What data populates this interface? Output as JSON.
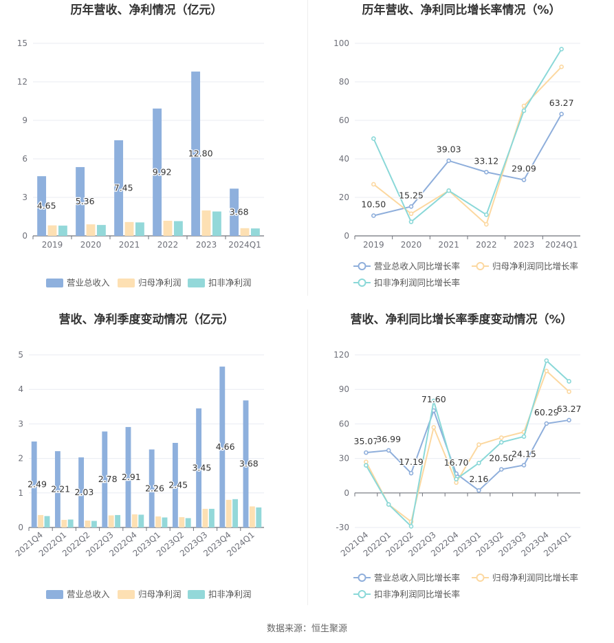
{
  "source_label": "数据来源：恒生聚源",
  "colors": {
    "revenue": "#8eb0dd",
    "net_profit": "#fde0b3",
    "deducted_profit": "#93d8d9",
    "grid": "#e8ebf2",
    "axis": "#6e7079",
    "text": "#333333"
  },
  "chart_data": [
    {
      "type": "bar",
      "title": "历年营收、净利情况（亿元）",
      "categories": [
        "2019",
        "2020",
        "2021",
        "2022",
        "2023",
        "2024Q1"
      ],
      "ylim": [
        0,
        15
      ],
      "yticks": [
        0,
        3,
        6,
        9,
        12,
        15
      ],
      "series": [
        {
          "name": "营业总收入",
          "values": [
            4.65,
            5.36,
            7.45,
            9.92,
            12.8,
            3.68
          ],
          "labels": [
            "4.65",
            "5.36",
            "7.45",
            "9.92",
            "12.80",
            "3.68"
          ]
        },
        {
          "name": "归母净利润",
          "values": [
            0.82,
            0.9,
            1.08,
            1.18,
            1.98,
            0.6
          ]
        },
        {
          "name": "扣非净利润",
          "values": [
            0.8,
            0.85,
            1.05,
            1.15,
            1.9,
            0.58
          ]
        }
      ],
      "legend": "bottom",
      "grid": true
    },
    {
      "type": "line",
      "title": "历年营收、净利同比增长率情况（%）",
      "categories": [
        "2019",
        "2020",
        "2021",
        "2022",
        "2023",
        "2024Q1"
      ],
      "ylim": [
        0,
        100
      ],
      "yticks": [
        0,
        20,
        40,
        60,
        80,
        100
      ],
      "series": [
        {
          "name": "营业总收入同比增长率",
          "values": [
            10.5,
            15.25,
            39.03,
            33.12,
            29.09,
            63.27
          ],
          "labels": [
            "10.50",
            "15.25",
            "39.03",
            "33.12",
            "29.09",
            "63.27"
          ]
        },
        {
          "name": "归母净利润同比增长率",
          "values": [
            26.8,
            11.5,
            23.5,
            6.0,
            67.5,
            87.8
          ]
        },
        {
          "name": "扣非净利润同比增长率",
          "values": [
            50.5,
            7.3,
            23.5,
            11.0,
            65.0,
            97.0
          ]
        }
      ],
      "legend": "bottom",
      "grid": true
    },
    {
      "type": "bar",
      "title": "营收、净利季度变动情况（亿元）",
      "categories": [
        "2021Q4",
        "2022Q1",
        "2022Q2",
        "2022Q3",
        "2022Q4",
        "2023Q1",
        "2023Q2",
        "2023Q3",
        "2023Q4",
        "2024Q1"
      ],
      "ylim": [
        0,
        5
      ],
      "yticks": [
        0,
        1,
        2,
        3,
        4,
        5
      ],
      "series": [
        {
          "name": "营业总收入",
          "values": [
            2.49,
            2.21,
            2.03,
            2.78,
            2.91,
            2.26,
            2.45,
            3.45,
            4.66,
            3.68
          ],
          "labels": [
            "2.49",
            "2.21",
            "2.03",
            "2.78",
            "2.91",
            "2.26",
            "2.45",
            "3.45",
            "4.66",
            "3.68"
          ]
        },
        {
          "name": "归母净利润",
          "values": [
            0.36,
            0.22,
            0.2,
            0.35,
            0.38,
            0.32,
            0.3,
            0.54,
            0.8,
            0.61
          ]
        },
        {
          "name": "扣非净利润",
          "values": [
            0.33,
            0.23,
            0.19,
            0.36,
            0.37,
            0.29,
            0.27,
            0.54,
            0.82,
            0.58
          ]
        }
      ],
      "legend": "bottom",
      "grid": true
    },
    {
      "type": "line",
      "title": "营收、净利同比增长率季度变动情况（%）",
      "categories": [
        "2021Q4",
        "2022Q1",
        "2022Q2",
        "2022Q3",
        "2022Q4",
        "2023Q1",
        "2023Q2",
        "2023Q3",
        "2023Q4",
        "2024Q1"
      ],
      "ylim": [
        -30,
        120
      ],
      "yticks": [
        -30,
        0,
        30,
        60,
        90,
        120
      ],
      "series": [
        {
          "name": "营业总收入同比增长率",
          "values": [
            35.07,
            36.99,
            17.19,
            71.6,
            16.7,
            2.16,
            20.5,
            24.15,
            60.29,
            63.27
          ],
          "labels": [
            "35.07",
            "36.99",
            "17.19",
            "71.60",
            "16.70",
            "2.16",
            "20.50",
            "24.15",
            "60.29",
            "63.27"
          ]
        },
        {
          "name": "归母净利润同比增长率",
          "values": [
            27.0,
            -10.0,
            -25.0,
            57.0,
            9.0,
            42.0,
            48.0,
            53.0,
            106.0,
            88.0
          ]
        },
        {
          "name": "扣非净利润同比增长率",
          "values": [
            24.0,
            -10.0,
            -29.0,
            80.0,
            12.0,
            26.0,
            44.0,
            49.0,
            115.0,
            97.0
          ]
        }
      ],
      "legend": "bottom",
      "grid": true
    }
  ]
}
